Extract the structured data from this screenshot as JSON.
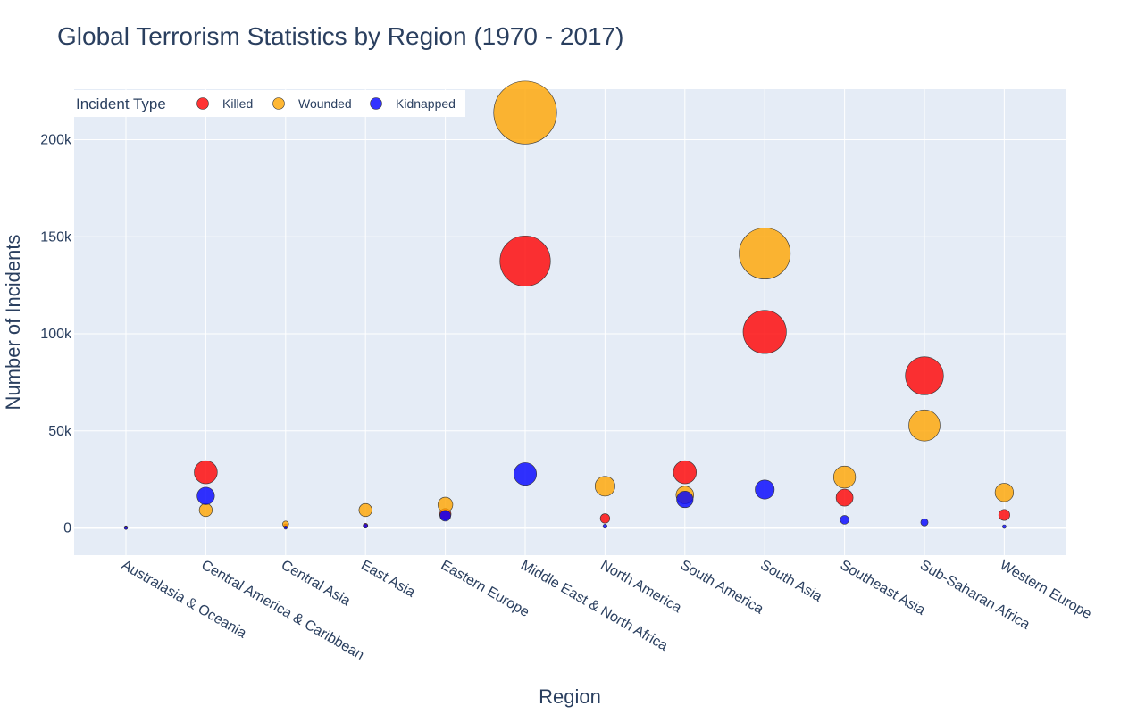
{
  "chart_data": {
    "type": "scatter",
    "title": "Global Terrorism Statistics by Region (1970 - 2017)",
    "xlabel": "Region",
    "ylabel": "Number of Incidents",
    "ylim": [
      -14000,
      226000
    ],
    "yticks": [
      0,
      50000,
      100000,
      150000,
      200000
    ],
    "ytick_labels": [
      "0",
      "50k",
      "100k",
      "150k",
      "200k"
    ],
    "grid": true,
    "legend": {
      "title": "Incident Type",
      "position": "top-left"
    },
    "categories": [
      "Australasia & Oceania",
      "Central America & Caribbean",
      "Central Asia",
      "East Asia",
      "Eastern Europe",
      "Middle East & North Africa",
      "North America",
      "South America",
      "South Asia",
      "Southeast Asia",
      "Sub-Saharan Africa",
      "Western Europe"
    ],
    "series": [
      {
        "name": "Killed",
        "color": "#ff0000",
        "values": [
          150,
          28700,
          1000,
          1200,
          7100,
          137500,
          4900,
          28700,
          101000,
          15600,
          78400,
          6700
        ]
      },
      {
        "name": "Wounded",
        "color": "#ffa500",
        "values": [
          250,
          9200,
          2000,
          9200,
          12000,
          214000,
          21500,
          17000,
          141400,
          26200,
          52800,
          18300
        ]
      },
      {
        "name": "Kidnapped",
        "color": "#0000ff",
        "values": [
          50,
          16500,
          200,
          1000,
          6300,
          27800,
          900,
          14700,
          19800,
          4200,
          2900,
          700
        ]
      }
    ],
    "marker_size_encoding": "area proportional to value",
    "colors": {
      "plot_bg": "#e5ecf6",
      "grid": "#ffffff",
      "text": "#2a3f5f",
      "marker_border": "#333333"
    }
  }
}
